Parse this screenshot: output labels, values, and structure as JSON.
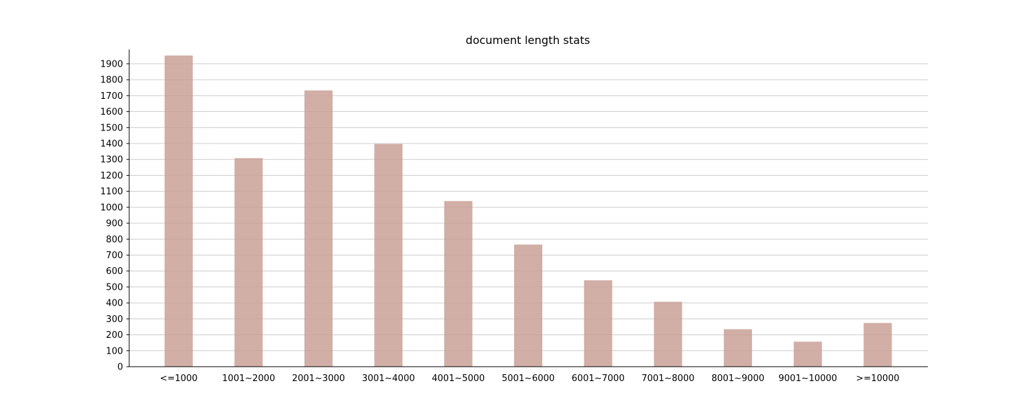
{
  "chart_data": {
    "type": "bar",
    "title": "document length stats",
    "xlabel": "",
    "ylabel": "",
    "categories": [
      "<=1000",
      "1001~2000",
      "2001~3000",
      "3001~4000",
      "4001~5000",
      "5001~6000",
      "6001~7000",
      "7001~8000",
      "8001~9000",
      "9001~10000",
      ">=10000"
    ],
    "values": [
      1952,
      1308,
      1733,
      1397,
      1039,
      766,
      542,
      407,
      235,
      157,
      274
    ],
    "ylim": [
      0,
      1990
    ],
    "yticks": [
      0,
      100,
      200,
      300,
      400,
      500,
      600,
      700,
      800,
      900,
      1000,
      1100,
      1200,
      1300,
      1400,
      1500,
      1600,
      1700,
      1800,
      1900
    ],
    "grid": "horizontal",
    "legend": "none",
    "bar_color": "#c9a096",
    "grid_color": "#cccccc"
  }
}
